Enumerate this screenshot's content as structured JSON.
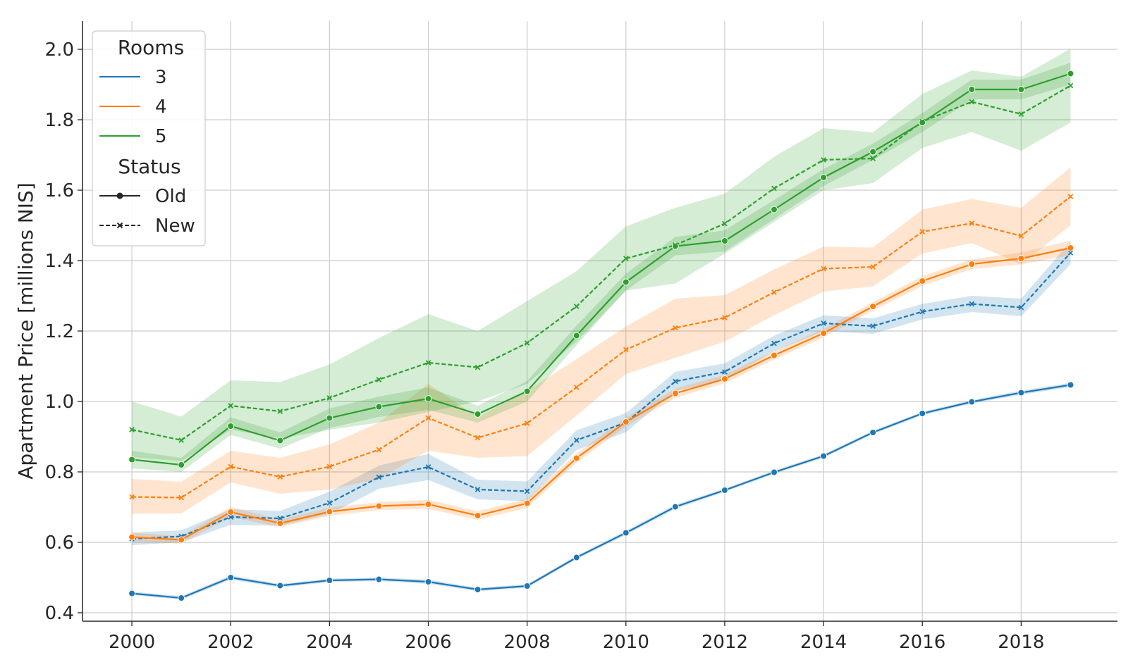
{
  "chart_data": {
    "type": "line",
    "title": "",
    "xlabel": "",
    "ylabel": "Apartment Price [millions NIS]",
    "x": [
      2000,
      2001,
      2002,
      2003,
      2004,
      2005,
      2006,
      2007,
      2008,
      2009,
      2010,
      2011,
      2012,
      2013,
      2014,
      2015,
      2016,
      2017,
      2018,
      2019
    ],
    "xlim": [
      1999,
      2019.95
    ],
    "ylim": [
      0.376,
      2.08
    ],
    "xticks": [
      2000,
      2002,
      2004,
      2006,
      2008,
      2010,
      2012,
      2014,
      2016,
      2018
    ],
    "xtick_labels": [
      "2000",
      "2002",
      "2004",
      "2006",
      "2008",
      "2010",
      "2012",
      "2014",
      "2016",
      "2018"
    ],
    "yticks": [
      0.4,
      0.6,
      0.8,
      1.0,
      1.2,
      1.4,
      1.6,
      1.8,
      2.0
    ],
    "ytick_labels": [
      "0.4",
      "0.6",
      "0.8",
      "1.0",
      "1.2",
      "1.4",
      "1.6",
      "1.8",
      "2.0"
    ],
    "grid": true,
    "legend": {
      "placement": "top-left",
      "rooms_title": "Rooms",
      "rooms": [
        {
          "label": "3",
          "color": "#1f77b4"
        },
        {
          "label": "4",
          "color": "#ff7f0e"
        },
        {
          "label": "5",
          "color": "#2ca02c"
        }
      ],
      "status_title": "Status",
      "status": [
        {
          "label": "Old",
          "linestyle": "solid",
          "marker": "circle"
        },
        {
          "label": "New",
          "linestyle": "dashed",
          "marker": "x"
        }
      ]
    },
    "series": [
      {
        "rooms": "3",
        "status": "Old",
        "color": "#1f77b4",
        "values": [
          0.455,
          0.442,
          0.5,
          0.477,
          0.492,
          0.495,
          0.488,
          0.466,
          0.476,
          0.557,
          0.627,
          0.701,
          0.748,
          0.799,
          0.845,
          0.912,
          0.966,
          0.999,
          1.025,
          1.047
        ],
        "lower": [
          0.45,
          0.437,
          0.494,
          0.472,
          0.487,
          0.49,
          0.482,
          0.461,
          0.471,
          0.552,
          0.621,
          0.695,
          0.743,
          0.794,
          0.84,
          0.907,
          0.961,
          0.994,
          1.019,
          1.041
        ],
        "upper": [
          0.46,
          0.447,
          0.506,
          0.482,
          0.497,
          0.5,
          0.494,
          0.471,
          0.481,
          0.562,
          0.633,
          0.707,
          0.753,
          0.804,
          0.85,
          0.917,
          0.971,
          1.004,
          1.031,
          1.053
        ]
      },
      {
        "rooms": "3",
        "status": "New",
        "color": "#1f77b4",
        "values": [
          0.61,
          0.617,
          0.672,
          0.668,
          0.712,
          0.785,
          0.814,
          0.75,
          0.745,
          0.89,
          0.94,
          1.057,
          1.084,
          1.165,
          1.222,
          1.214,
          1.255,
          1.277,
          1.267,
          1.422
        ],
        "lower": [
          0.592,
          0.6,
          0.65,
          0.647,
          0.68,
          0.752,
          0.777,
          0.722,
          0.717,
          0.862,
          0.913,
          1.03,
          1.06,
          1.143,
          1.199,
          1.192,
          1.233,
          1.254,
          1.242,
          1.39
        ],
        "upper": [
          0.628,
          0.634,
          0.694,
          0.689,
          0.744,
          0.818,
          0.851,
          0.778,
          0.773,
          0.918,
          0.967,
          1.084,
          1.108,
          1.187,
          1.245,
          1.236,
          1.277,
          1.3,
          1.292,
          1.454
        ]
      },
      {
        "rooms": "4",
        "status": "Old",
        "color": "#ff7f0e",
        "values": [
          0.615,
          0.607,
          0.686,
          0.654,
          0.687,
          0.703,
          0.708,
          0.676,
          0.711,
          0.839,
          0.942,
          1.023,
          1.064,
          1.131,
          1.194,
          1.27,
          1.342,
          1.39,
          1.406,
          1.436
        ],
        "lower": [
          0.603,
          0.596,
          0.672,
          0.643,
          0.675,
          0.692,
          0.695,
          0.664,
          0.698,
          0.826,
          0.929,
          1.01,
          1.052,
          1.119,
          1.182,
          1.258,
          1.328,
          1.376,
          1.389,
          1.415
        ],
        "upper": [
          0.627,
          0.618,
          0.7,
          0.665,
          0.699,
          0.714,
          0.721,
          0.688,
          0.724,
          0.852,
          0.955,
          1.036,
          1.076,
          1.143,
          1.206,
          1.282,
          1.356,
          1.404,
          1.423,
          1.457
        ]
      },
      {
        "rooms": "4",
        "status": "New",
        "color": "#ff7f0e",
        "values": [
          0.729,
          0.727,
          0.815,
          0.786,
          0.815,
          0.863,
          0.953,
          0.897,
          0.938,
          1.04,
          1.147,
          1.209,
          1.238,
          1.31,
          1.377,
          1.382,
          1.482,
          1.506,
          1.47,
          1.582
        ],
        "lower": [
          0.681,
          0.682,
          0.77,
          0.738,
          0.75,
          0.78,
          0.86,
          0.84,
          0.845,
          0.96,
          1.078,
          1.124,
          1.17,
          1.245,
          1.312,
          1.327,
          1.42,
          1.45,
          1.39,
          1.5
        ],
        "upper": [
          0.78,
          0.772,
          0.86,
          0.84,
          0.878,
          0.94,
          1.05,
          0.955,
          1.03,
          1.12,
          1.213,
          1.292,
          1.302,
          1.375,
          1.44,
          1.437,
          1.545,
          1.575,
          1.55,
          1.665
        ]
      },
      {
        "rooms": "5",
        "status": "Old",
        "color": "#2ca02c",
        "values": [
          0.835,
          0.82,
          0.93,
          0.889,
          0.953,
          0.985,
          1.008,
          0.964,
          1.029,
          1.187,
          1.339,
          1.441,
          1.456,
          1.545,
          1.636,
          1.709,
          1.792,
          1.886,
          1.886,
          1.931
        ],
        "lower": [
          0.81,
          0.8,
          0.905,
          0.866,
          0.925,
          0.956,
          0.976,
          0.94,
          1.0,
          1.16,
          1.315,
          1.415,
          1.426,
          1.518,
          1.612,
          1.686,
          1.765,
          1.858,
          1.858,
          1.9
        ],
        "upper": [
          0.86,
          0.84,
          0.955,
          0.912,
          0.98,
          1.014,
          1.04,
          0.988,
          1.058,
          1.215,
          1.363,
          1.467,
          1.486,
          1.572,
          1.66,
          1.732,
          1.819,
          1.914,
          1.914,
          1.962
        ]
      },
      {
        "rooms": "5",
        "status": "New",
        "color": "#2ca02c",
        "values": [
          0.92,
          0.89,
          0.988,
          0.972,
          1.01,
          1.062,
          1.11,
          1.097,
          1.166,
          1.27,
          1.406,
          1.444,
          1.505,
          1.605,
          1.686,
          1.69,
          1.795,
          1.851,
          1.816,
          1.897
        ],
        "lower": [
          0.842,
          0.83,
          0.92,
          0.895,
          0.92,
          0.94,
          0.97,
          1.0,
          1.05,
          1.17,
          1.315,
          1.335,
          1.42,
          1.51,
          1.6,
          1.62,
          1.72,
          1.765,
          1.712,
          1.792
        ],
        "upper": [
          1.0,
          0.957,
          1.06,
          1.055,
          1.105,
          1.18,
          1.248,
          1.2,
          1.285,
          1.37,
          1.497,
          1.55,
          1.59,
          1.695,
          1.776,
          1.764,
          1.873,
          1.94,
          1.922,
          2.002
        ]
      }
    ]
  }
}
